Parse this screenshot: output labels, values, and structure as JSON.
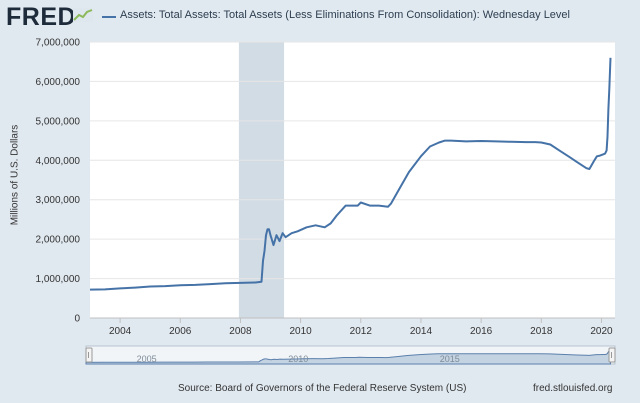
{
  "header": {
    "logo_text": "FRED",
    "logo_icon": "chart-line-icon",
    "legend_label": "Assets: Total Assets: Total Assets (Less Eliminations From Consolidation): Wednesday Level"
  },
  "footer": {
    "source": "Source: Board of Governors of the Federal Reserve System (US)",
    "site": "fred.stlouisfed.org"
  },
  "colors": {
    "background": "#e1e9f0",
    "plot_bg": "#ffffff",
    "series": "#4572a7",
    "recession": "#d2dce5",
    "grid": "#e6e6e6"
  },
  "chart_data": {
    "type": "line",
    "title": "",
    "xlabel": "",
    "ylabel": "Millions of U.S. Dollars",
    "xlim": [
      2003.0,
      2020.45
    ],
    "ylim": [
      0,
      7000000
    ],
    "yticks": [
      0,
      1000000,
      2000000,
      3000000,
      4000000,
      5000000,
      6000000,
      7000000
    ],
    "ytick_labels": [
      "0",
      "1,000,000",
      "2,000,000",
      "3,000,000",
      "4,000,000",
      "5,000,000",
      "6,000,000",
      "7,000,000"
    ],
    "xticks": [
      2004,
      2006,
      2008,
      2010,
      2012,
      2014,
      2016,
      2018,
      2020
    ],
    "xtick_labels": [
      "2004",
      "2006",
      "2008",
      "2010",
      "2012",
      "2014",
      "2016",
      "2018",
      "2020"
    ],
    "recessions": [
      [
        2007.95,
        2009.45
      ]
    ],
    "navigator_labels": [
      {
        "x": 2005,
        "label": "2005"
      },
      {
        "x": 2010,
        "label": "2010"
      },
      {
        "x": 2015,
        "label": "2015"
      }
    ],
    "series": [
      {
        "name": "Assets: Total Assets: Total Assets (Less Eliminations From Consolidation): Wednesday Level",
        "x": [
          2003.0,
          2003.5,
          2004.0,
          2004.5,
          2005.0,
          2005.5,
          2006.0,
          2006.5,
          2007.0,
          2007.5,
          2008.0,
          2008.5,
          2008.7,
          2008.75,
          2008.8,
          2008.85,
          2008.9,
          2008.95,
          2009.0,
          2009.1,
          2009.2,
          2009.3,
          2009.4,
          2009.5,
          2009.7,
          2009.9,
          2010.2,
          2010.5,
          2010.8,
          2011.0,
          2011.2,
          2011.5,
          2011.9,
          2012.0,
          2012.3,
          2012.6,
          2012.9,
          2013.0,
          2013.3,
          2013.6,
          2014.0,
          2014.3,
          2014.6,
          2014.8,
          2015.0,
          2015.5,
          2016.0,
          2016.5,
          2017.0,
          2017.5,
          2017.8,
          2018.0,
          2018.3,
          2018.6,
          2018.9,
          2019.2,
          2019.5,
          2019.6,
          2019.75,
          2019.85,
          2019.95,
          2020.05,
          2020.12,
          2020.17,
          2020.2,
          2020.23,
          2020.26,
          2020.3
        ],
        "y": [
          720000,
          725000,
          750000,
          770000,
          800000,
          810000,
          830000,
          840000,
          860000,
          880000,
          890000,
          900000,
          920000,
          1450000,
          1700000,
          2100000,
          2250000,
          2250000,
          2100000,
          1850000,
          2100000,
          1950000,
          2150000,
          2050000,
          2150000,
          2200000,
          2300000,
          2350000,
          2300000,
          2400000,
          2600000,
          2850000,
          2850000,
          2930000,
          2850000,
          2850000,
          2820000,
          2900000,
          3300000,
          3700000,
          4100000,
          4350000,
          4450000,
          4500000,
          4500000,
          4480000,
          4490000,
          4480000,
          4470000,
          4460000,
          4460000,
          4450000,
          4400000,
          4250000,
          4100000,
          3950000,
          3800000,
          3780000,
          3980000,
          4100000,
          4120000,
          4150000,
          4170000,
          4250000,
          4600000,
          5300000,
          5800000,
          6600000
        ]
      }
    ]
  }
}
